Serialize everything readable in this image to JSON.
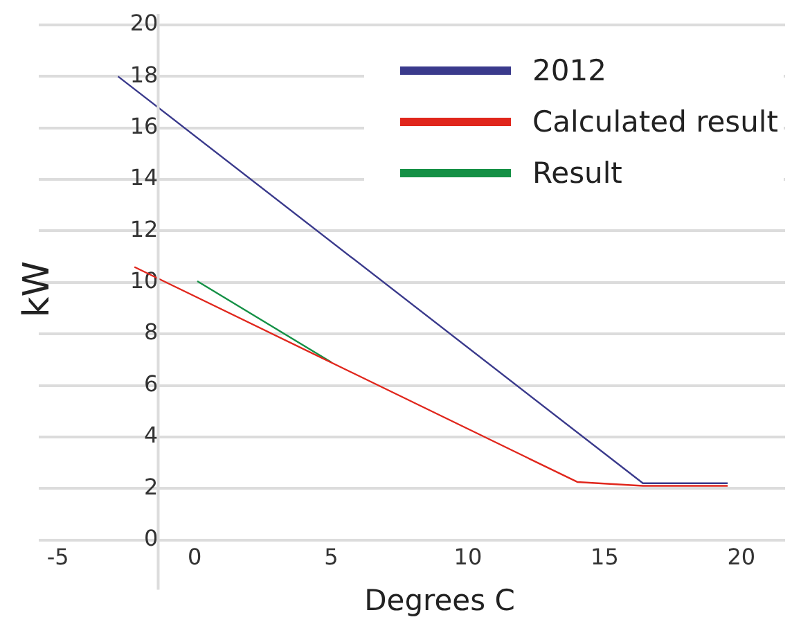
{
  "chart_data": {
    "type": "line",
    "xlabel": "Degrees C",
    "ylabel": "kW",
    "xlim": [
      -5.7,
      21.6
    ],
    "xticks": [
      -5,
      0,
      5,
      10,
      15,
      20
    ],
    "ylim": [
      0,
      20
    ],
    "yticks": [
      0,
      2,
      4,
      6,
      8,
      10,
      12,
      14,
      16,
      18,
      20
    ],
    "grid": "y",
    "legend": "top right",
    "marker": "none",
    "line_style": "solid",
    "series": [
      {
        "name": "2012",
        "color": "#3a3a8c",
        "x": [
          -2.8,
          16.4,
          19.5
        ],
        "values": [
          18.0,
          2.2,
          2.2
        ]
      },
      {
        "name": "Calculated result",
        "color": "#e0261c",
        "x": [
          -2.2,
          14.0,
          16.4,
          19.5
        ],
        "values": [
          10.6,
          2.25,
          2.1,
          2.1
        ]
      },
      {
        "name": "Result",
        "color": "#149045",
        "x": [
          0.1,
          5.0
        ],
        "values": [
          10.05,
          6.9
        ]
      }
    ]
  }
}
